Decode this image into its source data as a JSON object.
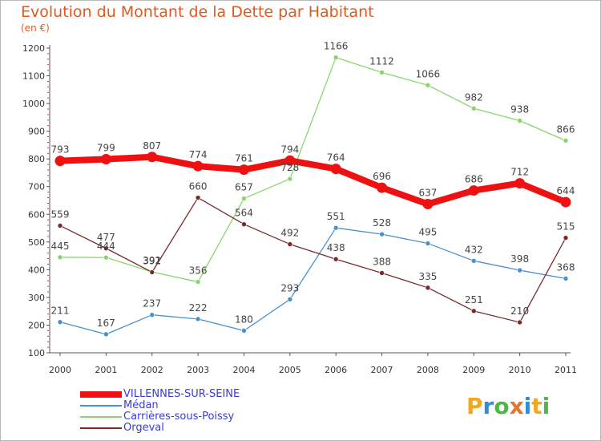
{
  "title": "Evolution du Montant de la Dette par Habitant",
  "subtitle": "(en €)",
  "logo": {
    "text": "Proxiti",
    "colors": [
      "#f2a81d",
      "#2d8fd9",
      "#4cb848",
      "#e8742a",
      "#2d8fd9",
      "#f2a81d",
      "#4cb848"
    ]
  },
  "chart_data": {
    "type": "line",
    "title": "Evolution du Montant de la Dette par Habitant",
    "subtitle": "(en €)",
    "x": [
      2000,
      2001,
      2002,
      2003,
      2004,
      2005,
      2006,
      2007,
      2008,
      2009,
      2010,
      2011
    ],
    "x_tick_labels": [
      "2000",
      "2001",
      "2002",
      "2003",
      "2004",
      "2005",
      "2006",
      "2007",
      "2008",
      "2009",
      "2010",
      "2011"
    ],
    "y_ticks": [
      100,
      200,
      300,
      400,
      500,
      600,
      700,
      800,
      900,
      1000,
      1100,
      1200
    ],
    "ylim": [
      100,
      1200
    ],
    "grid": false,
    "legend_position": "bottom-left",
    "series": [
      {
        "name": "VILLENNES-SUR-SEINE",
        "color": "#ee1111",
        "values": [
          793,
          799,
          807,
          774,
          761,
          794,
          764,
          696,
          637,
          686,
          712,
          644
        ],
        "labels": [
          "793",
          "799",
          "807",
          "774",
          "761",
          "794",
          "764",
          "696",
          "637",
          "686",
          "712",
          "644"
        ]
      },
      {
        "name": "Médan",
        "color": "#4a90d0",
        "values": [
          211,
          167,
          237,
          222,
          180,
          293,
          551,
          528,
          495,
          432,
          398,
          368
        ],
        "labels": [
          "211",
          "167",
          "237",
          "222",
          "180",
          "293",
          "551",
          "528",
          "495",
          "432",
          "398",
          "368"
        ]
      },
      {
        "name": "Carrières-sous-Poissy",
        "color": "#88d66b",
        "values": [
          445,
          444,
          392,
          356,
          657,
          728,
          1166,
          1112,
          1066,
          982,
          938,
          866
        ],
        "labels": [
          "445",
          "444",
          "392",
          "356",
          "657",
          "728",
          "1166",
          "1112",
          "1066",
          "982",
          "938",
          "866"
        ]
      },
      {
        "name": "Orgeval",
        "color": "#7a2a2a",
        "values": [
          559,
          477,
          391,
          660,
          564,
          492,
          438,
          388,
          335,
          251,
          210,
          515
        ],
        "labels": [
          "559",
          "477",
          "391",
          "660",
          "564",
          "492",
          "438",
          "388",
          "335",
          "251",
          "210",
          "515"
        ]
      }
    ]
  }
}
